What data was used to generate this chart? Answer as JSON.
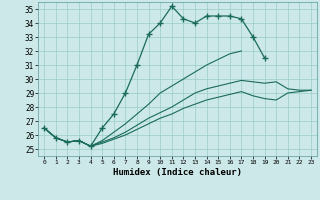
{
  "xlabel": "Humidex (Indice chaleur)",
  "ylabel": "",
  "background_color": "#cce8e8",
  "grid_color": "#99cccc",
  "line_color": "#1a6b5a",
  "xlim": [
    -0.5,
    23.5
  ],
  "ylim": [
    24.5,
    35.5
  ],
  "xticks": [
    0,
    1,
    2,
    3,
    4,
    5,
    6,
    7,
    8,
    9,
    10,
    11,
    12,
    13,
    14,
    15,
    16,
    17,
    18,
    19,
    20,
    21,
    22,
    23
  ],
  "yticks": [
    25,
    26,
    27,
    28,
    29,
    30,
    31,
    32,
    33,
    34,
    35
  ],
  "series1_x": [
    0,
    1,
    2,
    3,
    4,
    5,
    6,
    7,
    8,
    9,
    10,
    11,
    12,
    13,
    14,
    15,
    16,
    17,
    18,
    19
  ],
  "series1_y": [
    26.5,
    25.8,
    25.5,
    25.6,
    25.2,
    26.5,
    27.5,
    29.0,
    31.0,
    33.2,
    34.0,
    35.2,
    34.3,
    34.0,
    34.5,
    34.5,
    34.5,
    34.3,
    33.0,
    31.5
  ],
  "series1_markers": [
    0,
    1,
    2,
    3,
    4,
    5,
    6,
    7,
    8,
    9,
    10,
    11,
    12,
    13,
    14,
    15,
    16,
    17,
    18,
    19
  ],
  "series2_x": [
    0,
    1,
    2,
    3,
    4,
    5,
    6,
    7,
    8,
    9,
    10,
    11,
    12,
    13,
    14,
    15,
    16,
    17
  ],
  "series2_y": [
    26.5,
    25.8,
    25.5,
    25.6,
    25.2,
    25.6,
    26.2,
    26.8,
    27.5,
    28.2,
    29.0,
    29.5,
    30.0,
    30.5,
    31.0,
    31.4,
    31.8,
    32.0
  ],
  "series3_x": [
    0,
    1,
    2,
    3,
    4,
    5,
    6,
    7,
    8,
    9,
    10,
    11,
    12,
    13,
    14,
    15,
    16,
    17,
    18,
    19,
    20,
    21,
    22,
    23
  ],
  "series3_y": [
    26.5,
    25.8,
    25.5,
    25.6,
    25.2,
    25.5,
    25.8,
    26.2,
    26.7,
    27.2,
    27.6,
    28.0,
    28.5,
    29.0,
    29.3,
    29.5,
    29.7,
    29.9,
    29.8,
    29.7,
    29.8,
    29.3,
    29.2,
    29.2
  ],
  "series4_x": [
    0,
    1,
    2,
    3,
    4,
    5,
    6,
    7,
    8,
    9,
    10,
    11,
    12,
    13,
    14,
    15,
    16,
    17,
    18,
    19,
    20,
    21,
    22,
    23
  ],
  "series4_y": [
    26.5,
    25.8,
    25.5,
    25.6,
    25.2,
    25.4,
    25.7,
    26.0,
    26.4,
    26.8,
    27.2,
    27.5,
    27.9,
    28.2,
    28.5,
    28.7,
    28.9,
    29.1,
    28.8,
    28.6,
    28.5,
    29.0,
    29.1,
    29.2
  ]
}
